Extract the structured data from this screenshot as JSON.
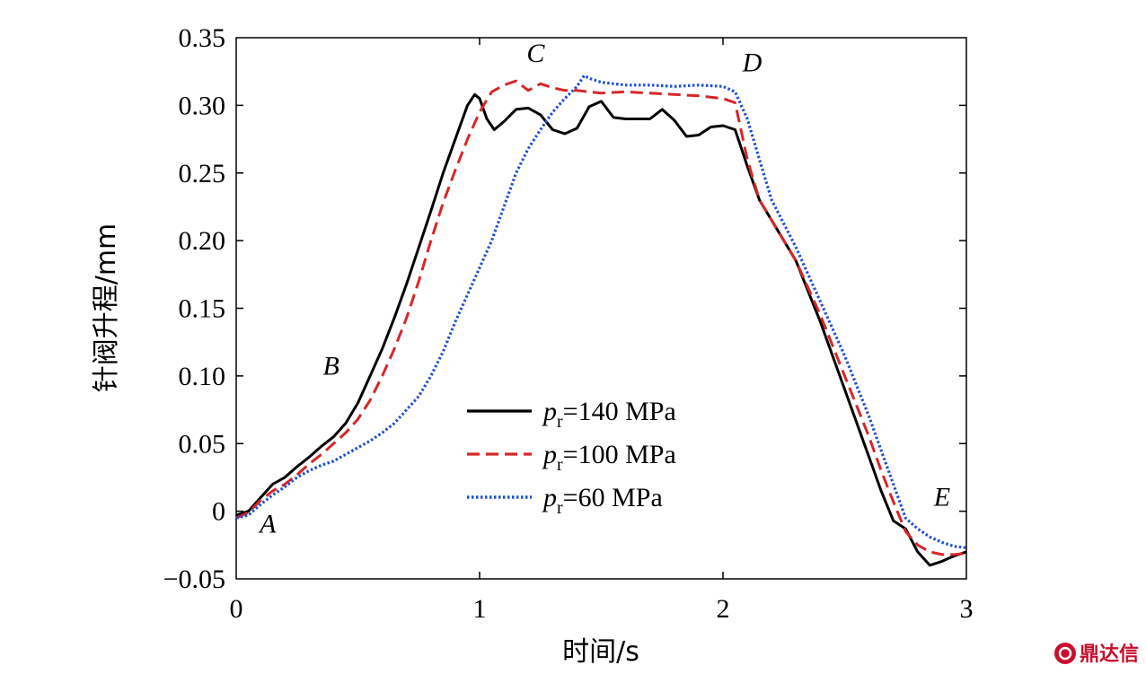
{
  "chart_data": {
    "type": "line",
    "xlabel": "时间/s",
    "ylabel": "针阀升程/mm",
    "xlim": [
      0,
      3
    ],
    "ylim": [
      -0.05,
      0.35
    ],
    "x_ticks": [
      "0",
      "1",
      "2",
      "3"
    ],
    "y_ticks": [
      "−0.05",
      "0",
      "0.05",
      "0.10",
      "0.15",
      "0.20",
      "0.25",
      "0.30",
      "0.35"
    ],
    "grid": false,
    "legend": "center",
    "annotations": [
      {
        "text": "A",
        "x": 0.13,
        "y": -0.016
      },
      {
        "text": "B",
        "x": 0.39,
        "y": 0.101
      },
      {
        "text": "C",
        "x": 1.23,
        "y": 0.332
      },
      {
        "text": "D",
        "x": 2.12,
        "y": 0.325
      },
      {
        "text": "E",
        "x": 2.9,
        "y": 0.004
      }
    ],
    "series": [
      {
        "name": "p_r=140 MPa",
        "legend_var": "p",
        "legend_sub": "r",
        "legend_value": "=140 MPa",
        "color": "#000000",
        "style": "solid",
        "x": [
          0,
          0.05,
          0.1,
          0.15,
          0.2,
          0.25,
          0.3,
          0.35,
          0.4,
          0.45,
          0.5,
          0.55,
          0.6,
          0.65,
          0.7,
          0.75,
          0.8,
          0.85,
          0.9,
          0.95,
          0.98,
          1.0,
          1.03,
          1.06,
          1.1,
          1.15,
          1.2,
          1.25,
          1.3,
          1.35,
          1.4,
          1.45,
          1.5,
          1.55,
          1.6,
          1.65,
          1.7,
          1.75,
          1.8,
          1.85,
          1.9,
          1.95,
          2.0,
          2.05,
          2.1,
          2.15,
          2.2,
          2.3,
          2.4,
          2.5,
          2.6,
          2.65,
          2.7,
          2.75,
          2.8,
          2.85,
          2.9,
          2.95,
          3.0
        ],
        "y": [
          -0.003,
          0.0,
          0.01,
          0.02,
          0.025,
          0.033,
          0.04,
          0.048,
          0.055,
          0.065,
          0.08,
          0.1,
          0.12,
          0.143,
          0.168,
          0.195,
          0.222,
          0.25,
          0.275,
          0.3,
          0.308,
          0.305,
          0.29,
          0.282,
          0.288,
          0.297,
          0.298,
          0.293,
          0.282,
          0.279,
          0.283,
          0.299,
          0.303,
          0.291,
          0.29,
          0.29,
          0.29,
          0.297,
          0.289,
          0.277,
          0.278,
          0.284,
          0.285,
          0.282,
          0.255,
          0.23,
          0.215,
          0.185,
          0.14,
          0.09,
          0.04,
          0.015,
          -0.007,
          -0.013,
          -0.03,
          -0.04,
          -0.037,
          -0.033,
          -0.03
        ]
      },
      {
        "name": "p_r=100 MPa",
        "legend_var": "p",
        "legend_sub": "r",
        "legend_value": "=100 MPa",
        "color": "#d62728",
        "style": "dashed",
        "x": [
          0,
          0.05,
          0.1,
          0.15,
          0.2,
          0.25,
          0.3,
          0.35,
          0.4,
          0.45,
          0.5,
          0.55,
          0.6,
          0.65,
          0.7,
          0.75,
          0.8,
          0.85,
          0.9,
          0.95,
          1.0,
          1.05,
          1.1,
          1.15,
          1.2,
          1.25,
          1.3,
          1.35,
          1.4,
          1.5,
          1.6,
          1.7,
          1.8,
          1.9,
          2.0,
          2.05,
          2.1,
          2.15,
          2.2,
          2.3,
          2.4,
          2.5,
          2.6,
          2.65,
          2.7,
          2.75,
          2.8,
          2.85,
          2.9,
          2.95,
          3.0
        ],
        "y": [
          -0.005,
          -0.001,
          0.008,
          0.015,
          0.02,
          0.027,
          0.035,
          0.042,
          0.05,
          0.058,
          0.068,
          0.082,
          0.1,
          0.12,
          0.143,
          0.17,
          0.2,
          0.228,
          0.252,
          0.275,
          0.295,
          0.31,
          0.315,
          0.318,
          0.311,
          0.316,
          0.313,
          0.311,
          0.311,
          0.309,
          0.31,
          0.309,
          0.308,
          0.307,
          0.305,
          0.302,
          0.26,
          0.23,
          0.215,
          0.185,
          0.145,
          0.1,
          0.055,
          0.03,
          0.007,
          -0.015,
          -0.025,
          -0.03,
          -0.032,
          -0.032,
          -0.031
        ]
      },
      {
        "name": "p_r=60 MPa",
        "legend_var": "p",
        "legend_sub": "r",
        "legend_value": "=60 MPa",
        "color": "#1f4fd6",
        "style": "dotted",
        "x": [
          0,
          0.05,
          0.1,
          0.15,
          0.2,
          0.25,
          0.3,
          0.35,
          0.4,
          0.45,
          0.5,
          0.55,
          0.6,
          0.65,
          0.7,
          0.75,
          0.8,
          0.85,
          0.9,
          0.95,
          1.0,
          1.05,
          1.1,
          1.15,
          1.2,
          1.25,
          1.3,
          1.35,
          1.4,
          1.43,
          1.45,
          1.5,
          1.6,
          1.7,
          1.8,
          1.9,
          2.0,
          2.05,
          2.1,
          2.15,
          2.2,
          2.3,
          2.4,
          2.5,
          2.6,
          2.65,
          2.7,
          2.75,
          2.8,
          2.85,
          2.9,
          2.95,
          3.0
        ],
        "y": [
          -0.005,
          -0.003,
          0.005,
          0.012,
          0.018,
          0.025,
          0.03,
          0.034,
          0.037,
          0.042,
          0.047,
          0.052,
          0.058,
          0.065,
          0.075,
          0.085,
          0.1,
          0.118,
          0.14,
          0.16,
          0.18,
          0.2,
          0.225,
          0.25,
          0.268,
          0.282,
          0.295,
          0.305,
          0.314,
          0.322,
          0.32,
          0.317,
          0.315,
          0.315,
          0.314,
          0.315,
          0.314,
          0.31,
          0.29,
          0.26,
          0.23,
          0.195,
          0.155,
          0.115,
          0.07,
          0.045,
          0.02,
          -0.005,
          -0.013,
          -0.019,
          -0.023,
          -0.026,
          -0.027
        ]
      }
    ]
  },
  "watermark": {
    "text": "鼎达信",
    "logo": "nd-logo-icon"
  }
}
